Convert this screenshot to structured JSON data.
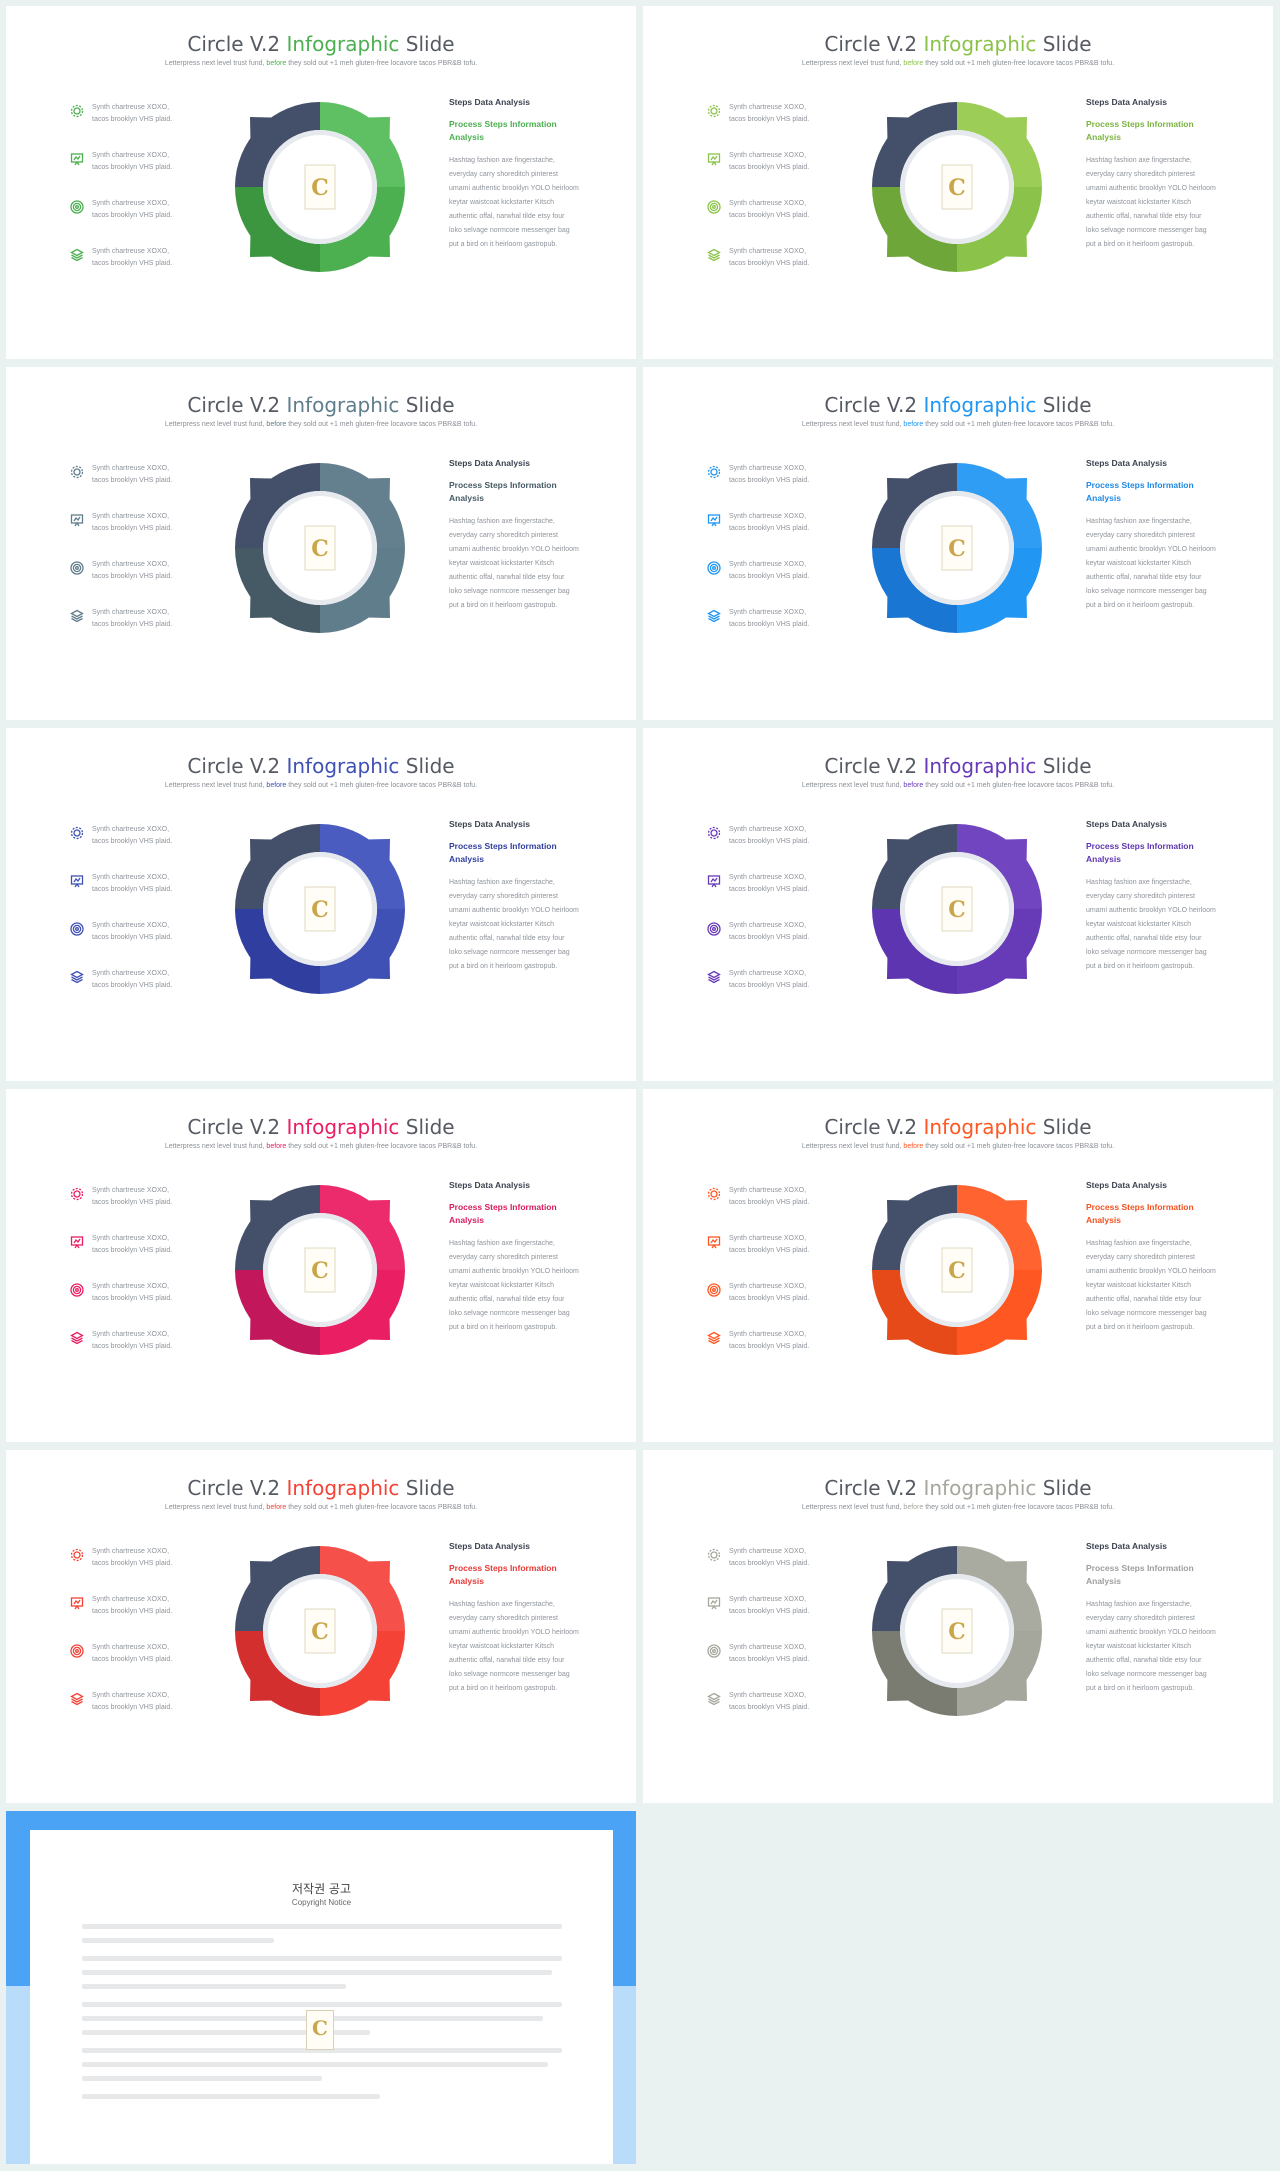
{
  "title": {
    "prefix": "Circle V.2 ",
    "highlight": "Infographic",
    "suffix": " Slide"
  },
  "subtitle": {
    "before": "Letterpress next level trust fund, ",
    "highlight": "before",
    "after": " they sold out +1 meh gluten-free locavore tacos PBR&B tofu."
  },
  "features": [
    {
      "icon": "gear-icon",
      "line1": "Synth chartreuse XOXO,",
      "line2": "tacos brooklyn VHS plaid."
    },
    {
      "icon": "presentation-icon",
      "line1": "Synth chartreuse XOXO,",
      "line2": "tacos brooklyn VHS plaid."
    },
    {
      "icon": "target-icon",
      "line1": "Synth chartreuse XOXO,",
      "line2": "tacos brooklyn VHS plaid."
    },
    {
      "icon": "layers-icon",
      "line1": "Synth chartreuse XOXO,",
      "line2": "tacos brooklyn VHS plaid."
    }
  ],
  "info": {
    "heading": "Steps Data Analysis",
    "subheading": "Process Steps Information Analysis",
    "body": "Hashtag fashion axe fingerstache, everyday carry shoreditch pinterest umami authentic brooklyn YOLO heirloom keytar waistcoat kickstarter Kitsch authentic offal, narwhal tilde etsy four loko selvage normcore messenger bag put a bird on it heirloom gastropub."
  },
  "logo_letter": "C",
  "dark_color": "#44506a",
  "slides": [
    {
      "accent": "#4caf50",
      "light": "#5fbf63",
      "dark": "#3c963f",
      "sub": "#4caf50"
    },
    {
      "accent": "#8bc34a",
      "light": "#9ccd57",
      "dark": "#6fa63a",
      "sub": "#7cb342"
    },
    {
      "accent": "#607d8b",
      "light": "#64808f",
      "dark": "#455a64",
      "sub": "#455a64"
    },
    {
      "accent": "#2196f3",
      "light": "#2f9df4",
      "dark": "#1976d2",
      "sub": "#1e88e5"
    },
    {
      "accent": "#3f51b5",
      "light": "#4a5cc0",
      "dark": "#303f9f",
      "sub": "#303f9f"
    },
    {
      "accent": "#673ab7",
      "light": "#7245c0",
      "dark": "#5e35b1",
      "sub": "#5e35b1"
    },
    {
      "accent": "#e91e63",
      "light": "#ec2b6d",
      "dark": "#c2185b",
      "sub": "#d81b60"
    },
    {
      "accent": "#ff5722",
      "light": "#ff6330",
      "dark": "#e64a19",
      "sub": "#f4511e"
    },
    {
      "accent": "#f44336",
      "light": "#f5514a",
      "dark": "#d32f2f",
      "sub": "#e53935"
    },
    {
      "accent": "#a5a79c",
      "light": "#a9aba0",
      "dark": "#7a7c72",
      "sub": "#9e9e9e"
    }
  ],
  "notice": {
    "title": "저작권 공고",
    "subtitle": "Copyright Notice"
  }
}
